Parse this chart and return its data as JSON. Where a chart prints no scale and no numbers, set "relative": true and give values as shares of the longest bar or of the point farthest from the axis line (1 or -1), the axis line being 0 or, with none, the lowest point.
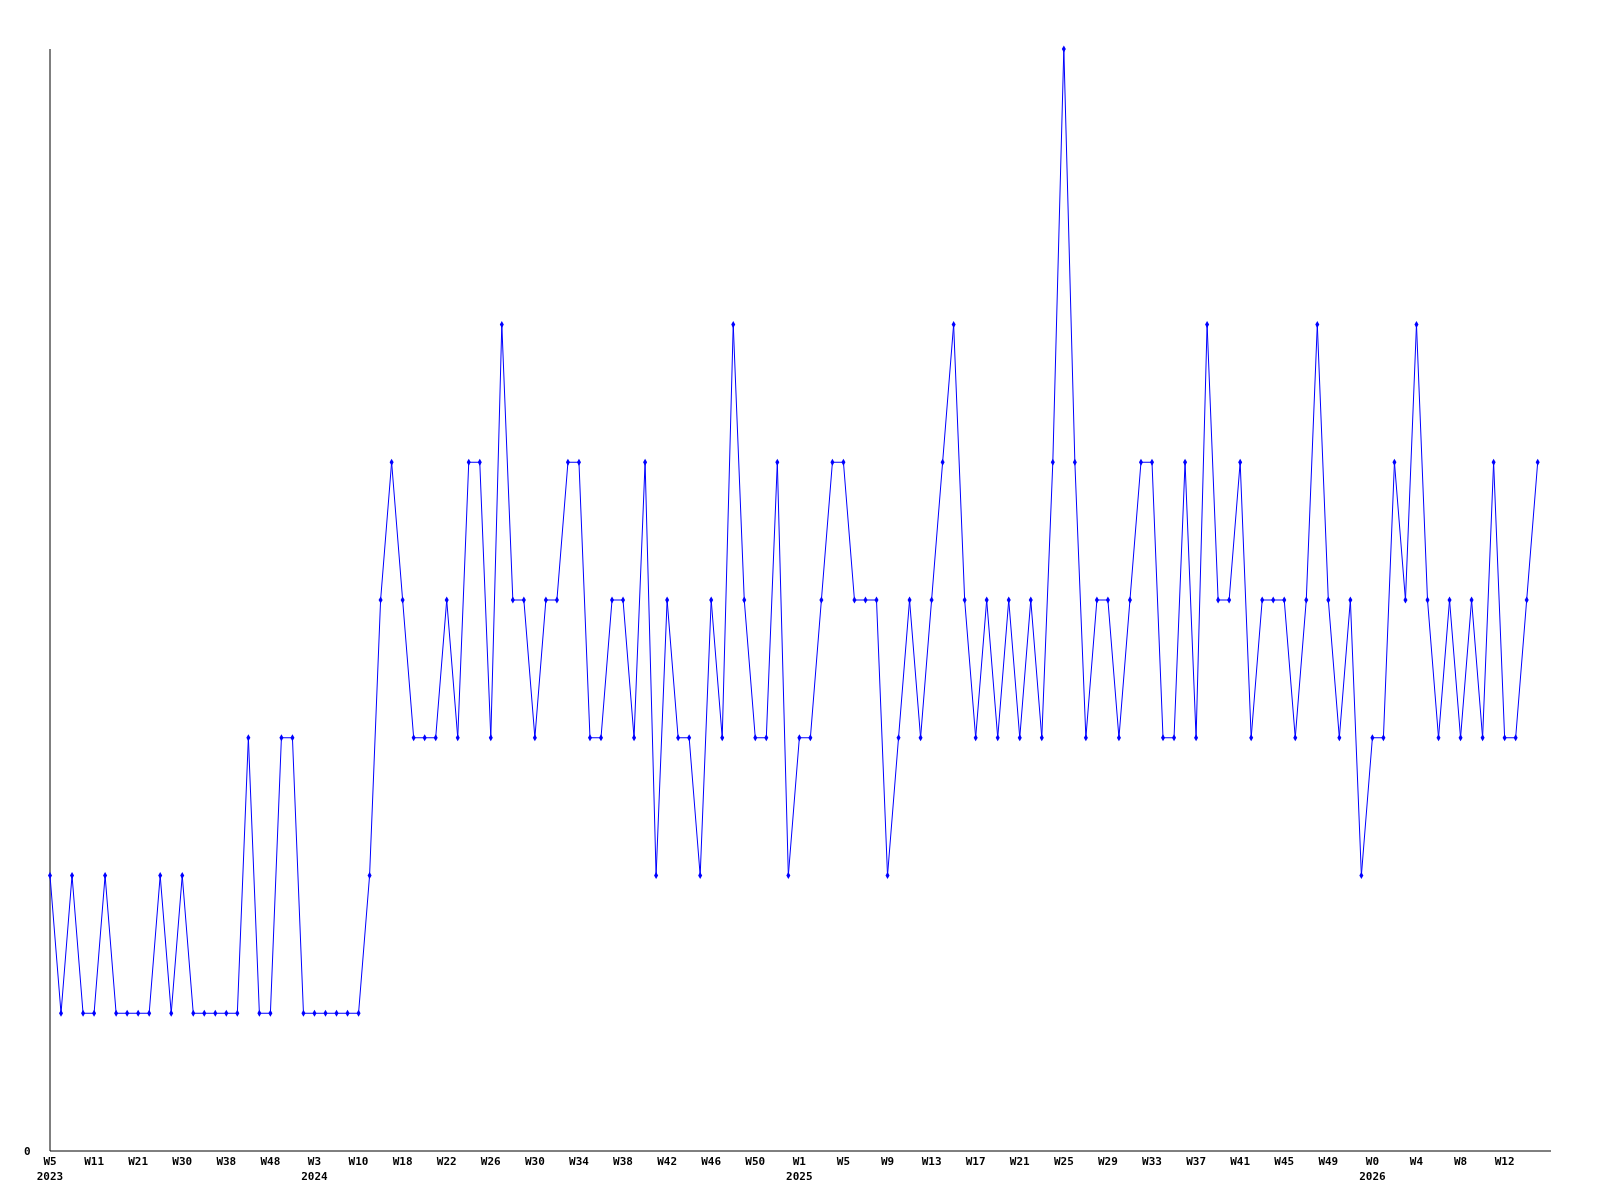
{
  "chart_data": {
    "type": "line",
    "relative": true,
    "marker": "diamond",
    "grid": false,
    "annotations": [
      "0"
    ],
    "categories": [
      "W5\n2023",
      null,
      null,
      null,
      "W11",
      null,
      null,
      null,
      "W21",
      null,
      null,
      null,
      "W30",
      null,
      null,
      null,
      "W38",
      null,
      null,
      null,
      "W48",
      null,
      null,
      null,
      "W3\n2024",
      null,
      null,
      null,
      "W10",
      null,
      null,
      null,
      "W18",
      null,
      null,
      null,
      "W22",
      null,
      null,
      null,
      "W26",
      null,
      null,
      null,
      "W30",
      null,
      null,
      null,
      "W34",
      null,
      null,
      null,
      "W38",
      null,
      null,
      null,
      "W42",
      null,
      null,
      null,
      "W46",
      null,
      null,
      null,
      "W50",
      null,
      null,
      null,
      "W1\n2025",
      null,
      null,
      null,
      "W5",
      null,
      null,
      null,
      "W9",
      null,
      null,
      null,
      "W13",
      null,
      null,
      null,
      "W17",
      null,
      null,
      null,
      "W21",
      null,
      null,
      null,
      "W25",
      null,
      null,
      null,
      "W29",
      null,
      null,
      null,
      "W33",
      null,
      null,
      null,
      "W37",
      null,
      null,
      null,
      "W41",
      null,
      null,
      null,
      "W45",
      null,
      null,
      null,
      "W49",
      null,
      null,
      null,
      "W0\n2026",
      null,
      null,
      null,
      "W4",
      null,
      null,
      null,
      "W8",
      null,
      null,
      null,
      "W12",
      null,
      null,
      null
    ],
    "series": [
      {
        "color": "#0000ff",
        "values": [
          0.25,
          0.125,
          0.25,
          0.125,
          0.125,
          0.25,
          0.125,
          0.125,
          0.125,
          0.125,
          0.25,
          0.125,
          0.25,
          0.125,
          0.125,
          0.125,
          0.125,
          0.125,
          0.375,
          0.125,
          0.125,
          0.375,
          0.375,
          0.125,
          0.125,
          0.125,
          0.125,
          0.125,
          0.125,
          0.25,
          0.5,
          0.625,
          0.5,
          0.375,
          0.375,
          0.375,
          0.5,
          0.375,
          0.625,
          0.625,
          0.375,
          0.75,
          0.5,
          0.5,
          0.375,
          0.5,
          0.5,
          0.625,
          0.625,
          0.375,
          0.375,
          0.5,
          0.5,
          0.375,
          0.625,
          0.25,
          0.5,
          0.375,
          0.375,
          0.25,
          0.5,
          0.375,
          0.75,
          0.5,
          0.375,
          0.375,
          0.625,
          0.25,
          0.375,
          0.375,
          0.5,
          0.625,
          0.625,
          0.5,
          0.5,
          0.5,
          0.25,
          0.375,
          0.5,
          0.375,
          0.5,
          0.625,
          0.75,
          0.5,
          0.375,
          0.5,
          0.375,
          0.5,
          0.375,
          0.5,
          0.375,
          0.625,
          1,
          0.625,
          0.375,
          0.5,
          0.5,
          0.375,
          0.5,
          0.625,
          0.625,
          0.375,
          0.375,
          0.625,
          0.375,
          0.75,
          0.5,
          0.5,
          0.625,
          0.375,
          0.5,
          0.5,
          0.5,
          0.375,
          0.5,
          0.75,
          0.5,
          0.375,
          0.5,
          0.25,
          0.375,
          0.375,
          0.625,
          0.5,
          0.75,
          0.5,
          0.375,
          0.5,
          0.375,
          0.5,
          0.375,
          0.625,
          0.375,
          0.375,
          0.5,
          0.625
        ]
      }
    ]
  }
}
